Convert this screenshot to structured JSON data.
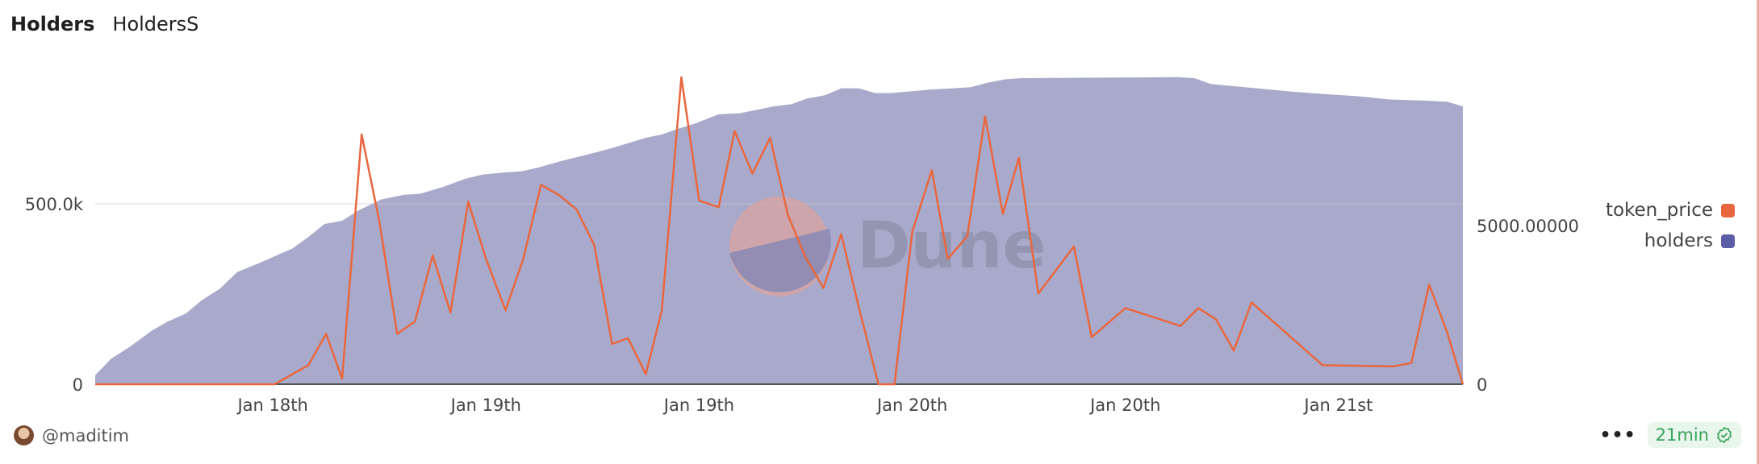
{
  "tabs": [
    {
      "label": "Holders",
      "active": true
    },
    {
      "label": "HoldersS",
      "active": false
    }
  ],
  "footer": {
    "author": "@maditim",
    "more_label": "•••",
    "refresh_badge": "21min",
    "badge_icon": "verified-check-icon"
  },
  "watermark": "Dune",
  "colors": {
    "token_price": "#e8673f",
    "holders": "#5b5ea6",
    "holders_fill": "#a9aacb",
    "badge_green": "#3aa35c"
  },
  "chart_data": {
    "type": "area+line",
    "title": "",
    "x_unit": "hours",
    "x_ticks": [
      {
        "x": 10,
        "label": "Jan 18th"
      },
      {
        "x": 22,
        "label": "Jan 19th"
      },
      {
        "x": 34,
        "label": "Jan 19th"
      },
      {
        "x": 46,
        "label": "Jan 20th"
      },
      {
        "x": 58,
        "label": "Jan 20th"
      },
      {
        "x": 70,
        "label": "Jan 21st"
      }
    ],
    "xlim": [
      0,
      77
    ],
    "left_axis": {
      "ticks": [
        {
          "v": 0,
          "label": "0"
        },
        {
          "v": 500000,
          "label": "500.0k"
        }
      ],
      "grid": true
    },
    "right_axis": {
      "ticks": [
        {
          "v": 0,
          "label": "0"
        },
        {
          "v": 5000,
          "label": "5000.00000"
        }
      ]
    },
    "legend_position": "right",
    "series": [
      {
        "name": "token_price",
        "type": "line",
        "axis": "right",
        "points": [
          [
            0,
            0
          ],
          [
            10.1,
            0
          ],
          [
            12,
            600
          ],
          [
            13,
            1589
          ],
          [
            13.9,
            177
          ],
          [
            15,
            7871
          ],
          [
            16,
            5118
          ],
          [
            17,
            1589
          ],
          [
            18,
            1977
          ],
          [
            19,
            4059
          ],
          [
            20,
            2259
          ],
          [
            21,
            5754
          ],
          [
            22,
            3953
          ],
          [
            23.1,
            2330
          ],
          [
            24.1,
            3953
          ],
          [
            25.1,
            6283
          ],
          [
            26.1,
            5965
          ],
          [
            27.1,
            5506
          ],
          [
            28.1,
            4377
          ],
          [
            29.1,
            1271
          ],
          [
            30,
            1447
          ],
          [
            31,
            318
          ],
          [
            31.9,
            2330
          ],
          [
            33,
            9672
          ],
          [
            34,
            5789
          ],
          [
            35.1,
            5577
          ],
          [
            36,
            7977
          ],
          [
            37,
            6636
          ],
          [
            38,
            7766
          ],
          [
            39,
            5330
          ],
          [
            40,
            3989
          ],
          [
            41,
            3036
          ],
          [
            42,
            4730
          ],
          [
            43,
            2400
          ],
          [
            44.1,
            0
          ],
          [
            45,
            0
          ],
          [
            46,
            4801
          ],
          [
            47.1,
            6742
          ],
          [
            48,
            3953
          ],
          [
            49.1,
            4659
          ],
          [
            50.1,
            8436
          ],
          [
            51.1,
            5365
          ],
          [
            52,
            7130
          ],
          [
            53.1,
            2859
          ],
          [
            55.1,
            4342
          ],
          [
            56.1,
            1483
          ],
          [
            58,
            2400
          ],
          [
            61.1,
            1836
          ],
          [
            62.1,
            2400
          ],
          [
            63.1,
            2047
          ],
          [
            64.1,
            1059
          ],
          [
            65.1,
            2577
          ],
          [
            69.1,
            600
          ],
          [
            73.1,
            565
          ],
          [
            74.1,
            671
          ],
          [
            75.1,
            3142
          ],
          [
            76.1,
            1659
          ],
          [
            77,
            0
          ]
        ]
      },
      {
        "name": "holders",
        "type": "area",
        "axis": "left",
        "points": [
          [
            0,
            25000
          ],
          [
            0.9,
            71000
          ],
          [
            1.9,
            102000
          ],
          [
            3.2,
            149000
          ],
          [
            4.1,
            174000
          ],
          [
            5.1,
            196000
          ],
          [
            6,
            233000
          ],
          [
            7,
            264000
          ],
          [
            8,
            311000
          ],
          [
            9.2,
            335000
          ],
          [
            11.1,
            376000
          ],
          [
            12,
            408000
          ],
          [
            12.9,
            444000
          ],
          [
            13.9,
            453000
          ],
          [
            14.8,
            481000
          ],
          [
            16.1,
            512000
          ],
          [
            17.4,
            525000
          ],
          [
            18.3,
            528000
          ],
          [
            19.6,
            547000
          ],
          [
            20.8,
            569000
          ],
          [
            21.8,
            581000
          ],
          [
            23.1,
            587000
          ],
          [
            24,
            590000
          ],
          [
            24.9,
            600000
          ],
          [
            26.2,
            618000
          ],
          [
            27.5,
            634000
          ],
          [
            28.7,
            649000
          ],
          [
            30,
            668000
          ],
          [
            31,
            683000
          ],
          [
            31.9,
            692000
          ],
          [
            32.8,
            708000
          ],
          [
            33.8,
            723000
          ],
          [
            35.1,
            748000
          ],
          [
            36.3,
            751000
          ],
          [
            37.3,
            761000
          ],
          [
            38.2,
            770000
          ],
          [
            39.2,
            776000
          ],
          [
            40.1,
            792000
          ],
          [
            41.1,
            801000
          ],
          [
            42,
            820000
          ],
          [
            43,
            820000
          ],
          [
            43.9,
            807000
          ],
          [
            44.8,
            807000
          ],
          [
            45.8,
            811000
          ],
          [
            47.1,
            817000
          ],
          [
            48.3,
            820000
          ],
          [
            49.3,
            823000
          ],
          [
            50.2,
            835000
          ],
          [
            51.2,
            845000
          ],
          [
            52.1,
            848000
          ],
          [
            61,
            851000
          ],
          [
            61.9,
            848000
          ],
          [
            62.8,
            832000
          ],
          [
            64.1,
            826000
          ],
          [
            65.4,
            820000
          ],
          [
            67.3,
            811000
          ],
          [
            69.2,
            804000
          ],
          [
            71.1,
            798000
          ],
          [
            72.9,
            789000
          ],
          [
            74.8,
            786000
          ],
          [
            76.1,
            783000
          ],
          [
            77,
            770000
          ]
        ]
      }
    ]
  }
}
